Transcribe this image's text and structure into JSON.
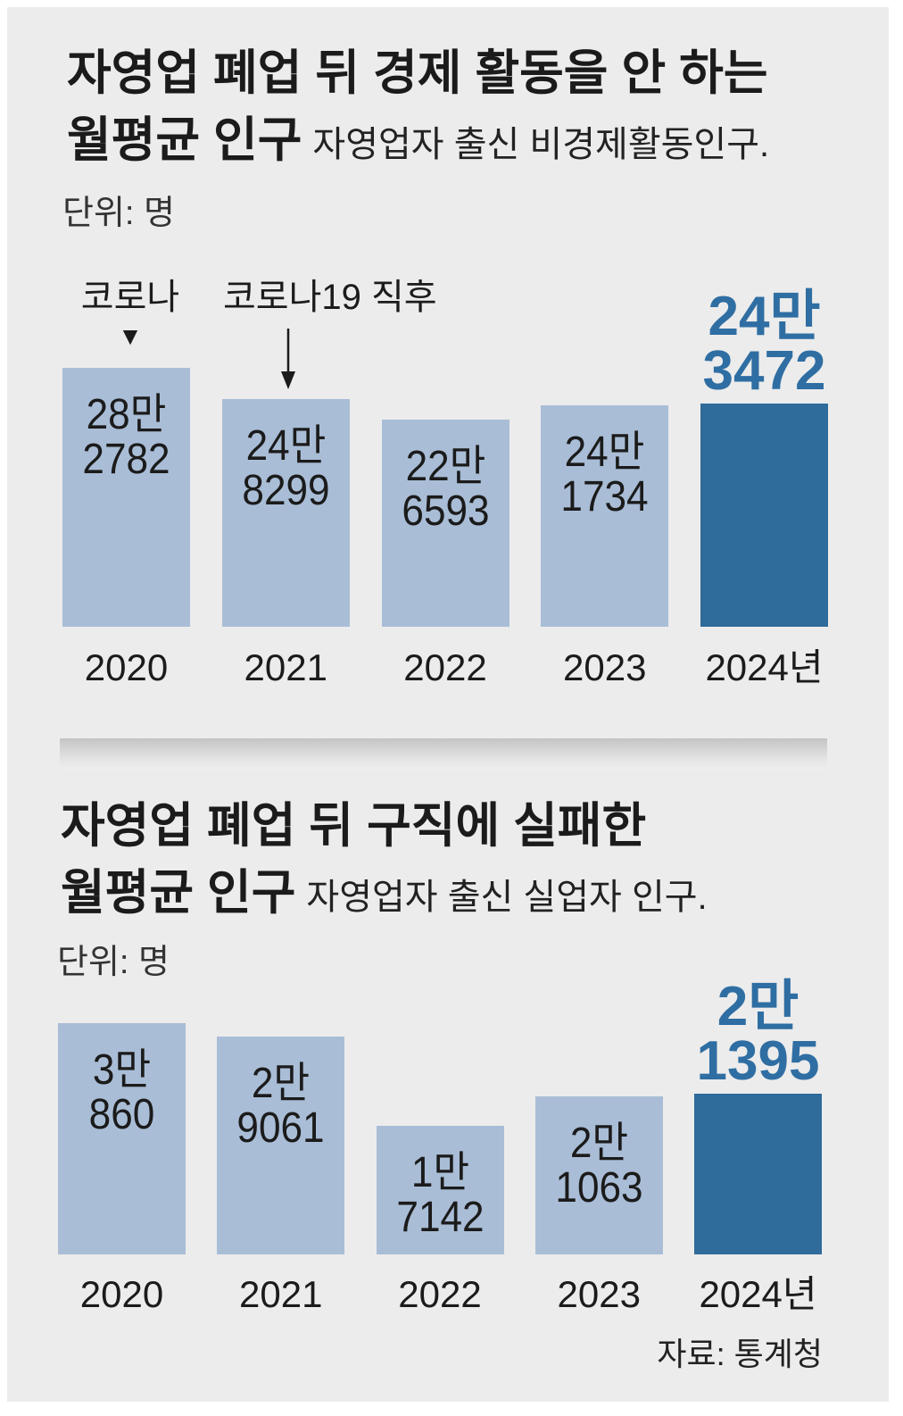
{
  "colors": {
    "background": "#ececec",
    "bar": "#a9bdd6",
    "highlight_bar": "#2f6b9b",
    "highlight_label": "#2f6ea3",
    "text": "#1b1b1b"
  },
  "chart_data": [
    {
      "type": "bar",
      "title": [
        "자영업 폐업 뒤 경제 활동을 안 하는",
        "월평균 인구"
      ],
      "subtitle": "자영업자 출신 비경제활동인구.",
      "unit_label": "단위: 명",
      "categories": [
        "2020",
        "2021",
        "2022",
        "2023",
        "2024년"
      ],
      "values": [
        282782,
        248299,
        226593,
        241734,
        243472
      ],
      "value_labels": [
        [
          "28만",
          "2782"
        ],
        [
          "24만",
          "8299"
        ],
        [
          "22만",
          "6593"
        ],
        [
          "24만",
          "1734"
        ],
        [
          "24만",
          "3472"
        ]
      ],
      "highlight_index": 4,
      "annotations": [
        {
          "category": "2020",
          "text": "코로나",
          "marker": "▼"
        },
        {
          "category": "2021",
          "text": "코로나19 직후",
          "marker": "arrow-down-icon"
        }
      ]
    },
    {
      "type": "bar",
      "title": [
        "자영업 폐업 뒤 구직에 실패한",
        "월평균 인구"
      ],
      "subtitle": "자영업자 출신 실업자 인구.",
      "unit_label": "단위: 명",
      "categories": [
        "2020",
        "2021",
        "2022",
        "2023",
        "2024년"
      ],
      "values": [
        30860,
        29061,
        17142,
        21063,
        21395
      ],
      "value_labels": [
        [
          "3만",
          "860"
        ],
        [
          "2만",
          "9061"
        ],
        [
          "1만",
          "7142"
        ],
        [
          "2만",
          "1063"
        ],
        [
          "2만",
          "1395"
        ]
      ],
      "highlight_index": 4
    }
  ],
  "source": "자료: 통계청"
}
